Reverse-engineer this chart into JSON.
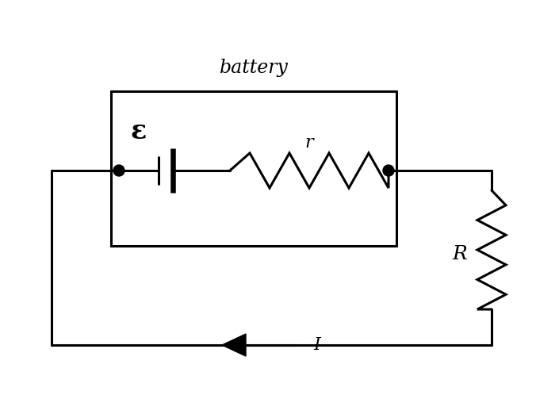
{
  "background_color": "#ffffff",
  "line_color": "#000000",
  "line_width": 2.2,
  "title": "battery",
  "title_fontsize": 17,
  "epsilon_label": "ε",
  "epsilon_fontsize": 24,
  "r_label": "r",
  "r_fontsize": 16,
  "R_label": "R",
  "R_fontsize": 18,
  "I_label": "I",
  "I_fontsize": 16,
  "fig_width": 6.76,
  "fig_height": 4.98,
  "dpi": 100
}
